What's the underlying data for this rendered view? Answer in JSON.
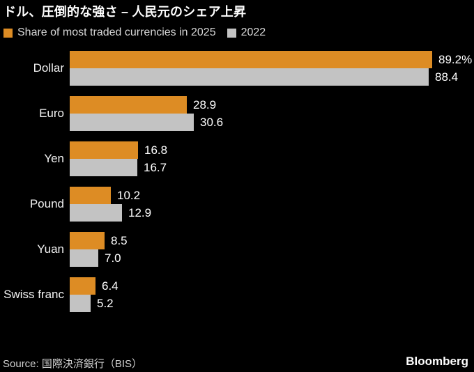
{
  "header": {
    "title": "ドル、圧倒的な強さ – 人民元のシェア上昇"
  },
  "legend": {
    "series1_label": "Share of most traded currencies in 2025",
    "series2_label": "2022"
  },
  "colors": {
    "background": "#000000",
    "series_2025": "#DD8C24",
    "series_2022": "#C3C3C3",
    "title_text": "#FFFFFF",
    "legend_text": "#D8D8D8",
    "value_text": "#FFFFFF"
  },
  "footer": {
    "source": "Source: 国際決済銀行（BIS）",
    "brand": "Bloomberg"
  },
  "chart_data": {
    "type": "bar",
    "orientation": "horizontal",
    "title": "ドル、圧倒的な強さ – 人民元のシェア上昇",
    "xlabel": "",
    "ylabel": "",
    "xlim": [
      0,
      100
    ],
    "grid": false,
    "legend_position": "top",
    "categories": [
      "Dollar",
      "Euro",
      "Yen",
      "Pound",
      "Yuan",
      "Swiss franc"
    ],
    "series": [
      {
        "name": "Share of most traded currencies in 2025",
        "year": "2025",
        "color": "#DD8C24",
        "values": [
          89.2,
          28.9,
          16.8,
          10.2,
          8.5,
          6.4
        ]
      },
      {
        "name": "2022",
        "year": "2022",
        "color": "#C3C3C3",
        "values": [
          88.4,
          30.6,
          16.7,
          12.9,
          7.0,
          5.2
        ]
      }
    ],
    "value_labels": [
      [
        "89.2%",
        "88.4"
      ],
      [
        "28.9",
        "30.6"
      ],
      [
        "16.8",
        "16.7"
      ],
      [
        "10.2",
        "12.9"
      ],
      [
        "8.5",
        "7.0"
      ],
      [
        "6.4",
        "5.2"
      ]
    ]
  }
}
